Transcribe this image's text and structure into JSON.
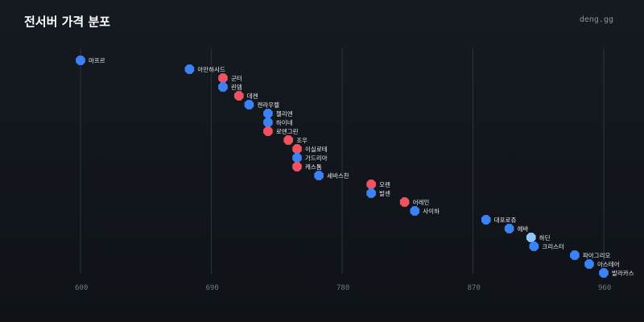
{
  "header": {
    "title": "전서버 가격 분포",
    "brand": "deng.gg"
  },
  "chart_data": {
    "type": "scatter",
    "title": "전서버 가격 분포",
    "xlabel": "",
    "ylabel": "",
    "xlim": [
      586,
      972
    ],
    "xticks": [
      600,
      690,
      780,
      870,
      960
    ],
    "grid": true,
    "colors": {
      "blue": "#3b82f6",
      "red": "#f05260",
      "light": "#93c5fd"
    },
    "points": [
      {
        "label": "마프르",
        "value": 600,
        "color": "blue"
      },
      {
        "label": "아만하사드",
        "value": 675,
        "color": "blue"
      },
      {
        "label": "군터",
        "value": 698,
        "color": "red"
      },
      {
        "label": "린뎀",
        "value": 698,
        "color": "blue"
      },
      {
        "label": "데켄",
        "value": 709,
        "color": "red"
      },
      {
        "label": "켄라우렐",
        "value": 716,
        "color": "blue"
      },
      {
        "label": "첼리엔",
        "value": 729,
        "color": "blue"
      },
      {
        "label": "하이네",
        "value": 729,
        "color": "blue"
      },
      {
        "label": "로엔그린",
        "value": 729,
        "color": "red"
      },
      {
        "label": "조우",
        "value": 743,
        "color": "red"
      },
      {
        "label": "이실로테",
        "value": 749,
        "color": "red"
      },
      {
        "label": "가드리아",
        "value": 749,
        "color": "blue"
      },
      {
        "label": "캐스톰",
        "value": 749,
        "color": "red"
      },
      {
        "label": "세바스찬",
        "value": 764,
        "color": "blue"
      },
      {
        "label": "오렌",
        "value": 800,
        "color": "red"
      },
      {
        "label": "발센",
        "value": 800,
        "color": "blue"
      },
      {
        "label": "어레인",
        "value": 823,
        "color": "red"
      },
      {
        "label": "사이하",
        "value": 830,
        "color": "blue"
      },
      {
        "label": "대포로쥬",
        "value": 879,
        "color": "blue"
      },
      {
        "label": "에바",
        "value": 895,
        "color": "blue"
      },
      {
        "label": "하딘",
        "value": 910,
        "color": "light"
      },
      {
        "label": "크리스터",
        "value": 912,
        "color": "blue"
      },
      {
        "label": "파아그리오",
        "value": 940,
        "color": "blue"
      },
      {
        "label": "아스테어",
        "value": 950,
        "color": "blue"
      },
      {
        "label": "발라카스",
        "value": 960,
        "color": "blue"
      }
    ]
  }
}
